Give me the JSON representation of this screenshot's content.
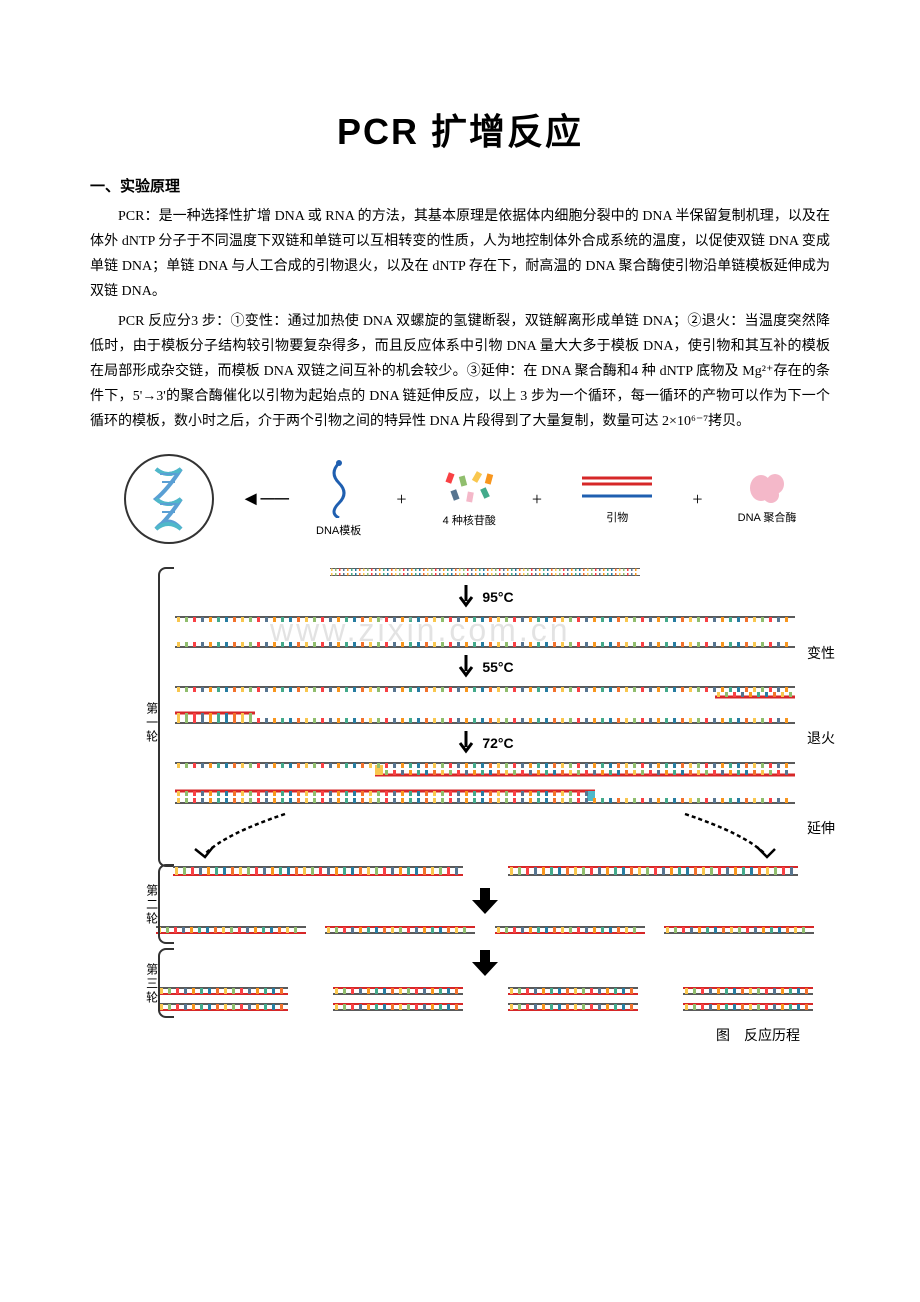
{
  "title": "PCR 扩增反应",
  "section_heading": "一、实验原理",
  "paragraphs": [
    "PCR：是一种选择性扩增 DNA 或 RNA 的方法，其基本原理是依据体内细胞分裂中的 DNA 半保留复制机理，以及在体外 dNTP 分子于不同温度下双链和单链可以互相转变的性质，人为地控制体外合成系统的温度，以促使双链 DNA 变成单链 DNA；单链 DNA 与人工合成的引物退火，以及在 dNTP 存在下，耐高温的 DNA 聚合酶使引物沿单链模板延伸成为双链 DNA。",
    "PCR 反应分3 步：①变性：通过加热使 DNA 双螺旋的氢键断裂，双链解离形成单链 DNA；②退火：当温度突然降低时，由于模板分子结构较引物要复杂得多，而且反应体系中引物 DNA 量大大多于模板 DNA，使引物和其互补的模板在局部形成杂交链，而模板 DNA 双链之间互补的机会较少。③延伸：在 DNA 聚合酶和4 种 dNTP 底物及 Mg²⁺存在的条件下，5'→3'的聚合酶催化以引物为起始点的 DNA 链延伸反应，以上 3 步为一个循环，每一循环的产物可以作为下一个循环的模板，数小时之后，介于两个引物之间的特异性 DNA 片段得到了大量复制，数量可达 2×10⁶⁻⁷拷贝。"
  ],
  "diagram": {
    "components": {
      "template_label": "DNA模板",
      "nucleotide_label": "4 种核苷酸",
      "primer_label": "引物",
      "polymerase_label": "DNA 聚合酶"
    },
    "temperatures": {
      "denature": "95°C",
      "anneal": "55°C",
      "extend": "72°C"
    },
    "phases": {
      "denature": "变性",
      "anneal": "退火",
      "extend": "延伸"
    },
    "rounds": {
      "first": "第一轮",
      "second": "第二轮",
      "third": "第三轮"
    },
    "watermark": "www.zixin.com.cn",
    "figure_caption": "图　反应历程",
    "colors": {
      "helix_blue": "#5a9fd4",
      "helix_cyan": "#4fb8c9",
      "primer_red": "#d62728",
      "primer_blue": "#1f5fb0",
      "polymerase_pink": "#f4b8c9",
      "strand_colors": [
        "#f9c74f",
        "#90be6d",
        "#f94144",
        "#577590",
        "#f8961e",
        "#43aa8b",
        "#277da1",
        "#f3722c"
      ],
      "arrow_black": "#000000",
      "text_black": "#000000",
      "brace_color": "#333333"
    },
    "strand": {
      "long_width": 620,
      "med_width": 400,
      "short_width": 280,
      "height": 10
    }
  }
}
